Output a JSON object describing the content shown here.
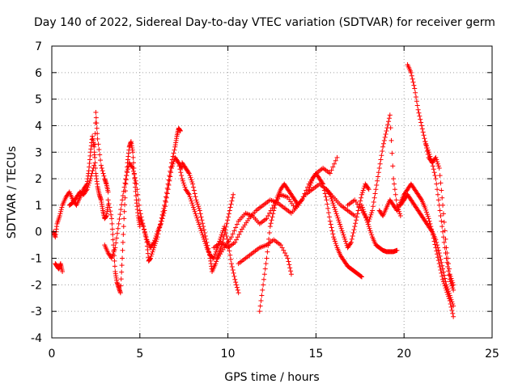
{
  "chart_data": {
    "type": "scatter",
    "title": "Day 140 of 2022, Sidereal Day-to-day VTEC variation (SDTVAR) for receiver germ",
    "xlabel": "GPS time / hours",
    "ylabel": "SDTVAR / TECUs",
    "xlim": [
      0,
      25
    ],
    "ylim": [
      -4,
      7
    ],
    "x_ticks": [
      "0",
      "5",
      "10",
      "15",
      "20",
      "25"
    ],
    "y_ticks": [
      "-4",
      "-3",
      "-2",
      "-1",
      "0",
      "1",
      "2",
      "3",
      "4",
      "5",
      "6",
      "7"
    ],
    "grid": true,
    "marker": "+",
    "color": "#ff0000",
    "series": [
      {
        "name": "s1",
        "x": [
          0.1,
          0.2,
          0.3,
          0.45,
          0.6,
          0.8,
          1.0,
          1.2,
          1.4,
          1.6,
          1.8,
          2.0,
          2.1,
          2.2,
          2.3,
          2.4,
          2.5,
          2.6,
          2.7,
          2.8,
          2.9,
          3.0,
          3.1,
          3.2
        ],
        "y": [
          0,
          -0.2,
          0.3,
          0.6,
          1.0,
          1.3,
          1.5,
          1.2,
          1.0,
          1.3,
          1.6,
          1.8,
          2.3,
          3.0,
          3.6,
          3.2,
          2.2,
          1.7,
          1.4,
          1.2,
          0.8,
          0.5,
          0.6,
          1.0
        ]
      },
      {
        "name": "s2",
        "x": [
          0.2,
          0.3,
          0.4,
          0.5,
          0.6
        ],
        "y": [
          -1.2,
          -1.3,
          -1.4,
          -1.2,
          -1.5
        ]
      },
      {
        "name": "s3",
        "x": [
          1.0,
          1.2,
          1.4,
          1.6,
          1.8,
          2.0,
          2.2,
          2.4,
          2.5,
          2.6,
          2.8,
          3.0,
          3.1,
          3.2
        ],
        "y": [
          1.0,
          1.1,
          1.3,
          1.5,
          1.4,
          1.6,
          2.0,
          2.5,
          4.5,
          3.5,
          2.5,
          2.0,
          1.8,
          1.5
        ]
      },
      {
        "name": "s4",
        "x": [
          3.2,
          3.4,
          3.5,
          3.6,
          3.7,
          3.8,
          3.9,
          4.0,
          4.1,
          4.2,
          4.3,
          4.4,
          4.5,
          4.6,
          4.7,
          4.8,
          4.9,
          5.0
        ],
        "y": [
          1.2,
          0.5,
          -0.5,
          -1.5,
          -1.9,
          -2.1,
          -2.3,
          -1.0,
          0.5,
          1.8,
          2.6,
          3.2,
          3.4,
          3.0,
          2.0,
          1.2,
          0.6,
          0.2
        ]
      },
      {
        "name": "s5",
        "x": [
          3.0,
          3.2,
          3.4,
          3.6,
          3.8,
          4.0,
          4.2,
          4.4,
          4.6,
          4.8,
          5.0,
          5.2,
          5.4,
          5.6,
          5.8,
          6.0,
          6.2,
          6.4,
          6.6,
          6.8,
          7.0,
          7.2,
          7.4
        ],
        "y": [
          -0.5,
          -0.8,
          -1.0,
          -0.6,
          0.3,
          1.2,
          2.0,
          2.6,
          2.4,
          1.8,
          0.8,
          0.2,
          -0.3,
          -0.6,
          -0.4,
          0.0,
          0.3,
          0.8,
          1.6,
          2.4,
          2.8,
          2.6,
          2.4
        ]
      },
      {
        "name": "s6",
        "x": [
          5.0,
          5.2,
          5.4,
          5.5,
          5.6,
          5.8,
          6.0,
          6.2,
          6.4,
          6.6,
          6.8,
          7.0,
          7.1,
          7.2,
          7.3
        ],
        "y": [
          0.5,
          0.2,
          -0.4,
          -1.1,
          -1.0,
          -0.6,
          -0.2,
          0.4,
          1.0,
          1.8,
          2.6,
          3.2,
          3.6,
          3.9,
          3.8
        ]
      },
      {
        "name": "s7",
        "x": [
          7.2,
          7.4,
          7.6,
          7.8,
          8.0,
          8.2,
          8.4,
          8.6,
          8.8,
          9.0,
          9.2,
          9.4,
          9.6,
          9.8,
          10.0,
          10.2,
          10.4,
          10.6
        ],
        "y": [
          2.6,
          2.0,
          1.6,
          1.4,
          1.0,
          0.6,
          0.2,
          -0.2,
          -0.6,
          -0.9,
          -1.0,
          -0.6,
          -0.2,
          0.2,
          -0.4,
          -1.2,
          -1.8,
          -2.3
        ]
      },
      {
        "name": "s8",
        "x": [
          7.4,
          7.6,
          7.8,
          8.0,
          8.2,
          8.4,
          8.6,
          8.8,
          9.0,
          9.1,
          9.3,
          9.5,
          9.7,
          9.9,
          10.1,
          10.3
        ],
        "y": [
          2.6,
          2.4,
          2.2,
          1.8,
          1.2,
          0.8,
          0.2,
          -0.4,
          -1.0,
          -1.5,
          -1.2,
          -0.8,
          -0.4,
          0.2,
          0.8,
          1.4
        ]
      },
      {
        "name": "s9",
        "x": [
          9.2,
          9.6,
          10.0,
          10.4,
          10.8,
          11.2,
          11.6,
          12.0,
          12.4,
          12.8,
          13.2,
          13.6,
          14.0,
          14.4,
          14.8,
          15.2,
          15.6,
          16.0,
          16.4,
          16.8,
          17.2
        ],
        "y": [
          -0.6,
          -0.4,
          -0.6,
          -0.4,
          0.1,
          0.5,
          0.8,
          1.0,
          1.2,
          1.1,
          0.9,
          0.7,
          1.0,
          1.4,
          1.6,
          1.8,
          1.6,
          1.3,
          1.0,
          0.8,
          0.6
        ]
      },
      {
        "name": "s10",
        "x": [
          9.4,
          9.8,
          10.2,
          10.6,
          11.0,
          11.4,
          11.8,
          12.2,
          12.6,
          13.0,
          13.4,
          13.8,
          14.2,
          14.6,
          15.0,
          15.4,
          15.8,
          16.2
        ],
        "y": [
          -1.0,
          -0.6,
          -0.2,
          0.4,
          0.7,
          0.6,
          0.3,
          0.5,
          1.0,
          1.4,
          1.3,
          0.9,
          1.2,
          1.8,
          2.2,
          2.4,
          2.2,
          2.8
        ]
      },
      {
        "name": "s11",
        "x": [
          10.6,
          11.0,
          11.4,
          11.8,
          12.2,
          12.6,
          13.0,
          13.4,
          13.6
        ],
        "y": [
          -1.2,
          -1.0,
          -0.8,
          -0.6,
          -0.5,
          -0.3,
          -0.5,
          -1.0,
          -1.6
        ]
      },
      {
        "name": "s12",
        "x": [
          11.8,
          12.0,
          12.2,
          12.4,
          12.6,
          12.8,
          13.0,
          13.2,
          13.4,
          13.6,
          13.8,
          14.0
        ],
        "y": [
          -3.0,
          -2.0,
          -1.0,
          0.2,
          0.8,
          1.3,
          1.6,
          1.8,
          1.6,
          1.4,
          1.2,
          1.0
        ]
      },
      {
        "name": "s13",
        "x": [
          14.6,
          14.8,
          15.0,
          15.2,
          15.4,
          15.6,
          15.8,
          16.0,
          16.2,
          16.4,
          16.6,
          16.8,
          17.0,
          17.2,
          17.4,
          17.6
        ],
        "y": [
          1.6,
          2.0,
          2.2,
          2.0,
          1.8,
          1.2,
          0.4,
          -0.2,
          -0.6,
          -0.9,
          -1.1,
          -1.3,
          -1.4,
          -1.5,
          -1.6,
          -1.7
        ]
      },
      {
        "name": "s14",
        "x": [
          15.6,
          15.8,
          16.0,
          16.2,
          16.4,
          16.6,
          16.8,
          17.0,
          17.2,
          17.4,
          17.6,
          17.8,
          18.0
        ],
        "y": [
          1.6,
          1.4,
          1.0,
          0.6,
          0.2,
          -0.2,
          -0.6,
          -0.4,
          0.2,
          0.8,
          1.4,
          1.8,
          1.6
        ]
      },
      {
        "name": "s15",
        "x": [
          16.8,
          17.2,
          17.6,
          18.0,
          18.2,
          18.4,
          18.6,
          18.8,
          19.0,
          19.2,
          19.4,
          19.6,
          19.8
        ],
        "y": [
          1.0,
          1.2,
          0.8,
          0.4,
          0.8,
          1.6,
          2.4,
          3.2,
          3.8,
          4.4,
          2.0,
          1.0,
          0.6
        ]
      },
      {
        "name": "s16",
        "x": [
          17.6,
          17.8,
          18.0,
          18.2,
          18.4,
          18.6,
          18.8,
          19.0,
          19.2,
          19.4,
          19.6
        ],
        "y": [
          1.0,
          0.6,
          0.2,
          -0.2,
          -0.5,
          -0.6,
          -0.7,
          -0.75,
          -0.75,
          -0.75,
          -0.7
        ]
      },
      {
        "name": "s17",
        "x": [
          18.6,
          18.8,
          19.0,
          19.2,
          19.4,
          19.6,
          19.8,
          20.0,
          20.2,
          20.4,
          20.6,
          20.8,
          21.0,
          21.2,
          21.4,
          21.6,
          21.8,
          22.0,
          22.2,
          22.4,
          22.6,
          22.8
        ],
        "y": [
          0.8,
          0.6,
          0.9,
          1.2,
          1.0,
          0.8,
          1.1,
          1.4,
          1.6,
          1.8,
          1.6,
          1.4,
          1.2,
          0.9,
          0.5,
          0.0,
          -0.6,
          -1.2,
          -1.8,
          -2.2,
          -2.6,
          -3.2
        ]
      },
      {
        "name": "s18",
        "x": [
          19.8,
          20.0,
          20.2,
          20.4,
          20.6,
          20.8,
          21.0,
          21.2,
          21.4,
          21.6,
          21.8,
          22.0,
          22.2,
          22.4,
          22.6,
          22.8
        ],
        "y": [
          1.0,
          1.2,
          1.4,
          1.2,
          1.0,
          0.8,
          0.6,
          0.4,
          0.2,
          0.0,
          -0.3,
          -0.8,
          -1.4,
          -2.0,
          -2.4,
          -2.8
        ]
      },
      {
        "name": "s19",
        "x": [
          20.2,
          20.4,
          20.6,
          20.8,
          21.0,
          21.2,
          21.4,
          21.6,
          21.8,
          22.0,
          22.2,
          22.4,
          22.6,
          22.8
        ],
        "y": [
          6.3,
          6.0,
          5.4,
          4.6,
          4.0,
          3.4,
          3.0,
          2.6,
          2.0,
          1.0,
          0.0,
          -1.0,
          -1.8,
          -2.2
        ]
      },
      {
        "name": "s20",
        "x": [
          21.2,
          21.4,
          21.6,
          21.8,
          22.0,
          22.2,
          22.4,
          22.6,
          22.8
        ],
        "y": [
          3.4,
          2.8,
          2.6,
          2.8,
          2.4,
          1.0,
          -0.6,
          -1.6,
          -2.0
        ]
      }
    ]
  }
}
